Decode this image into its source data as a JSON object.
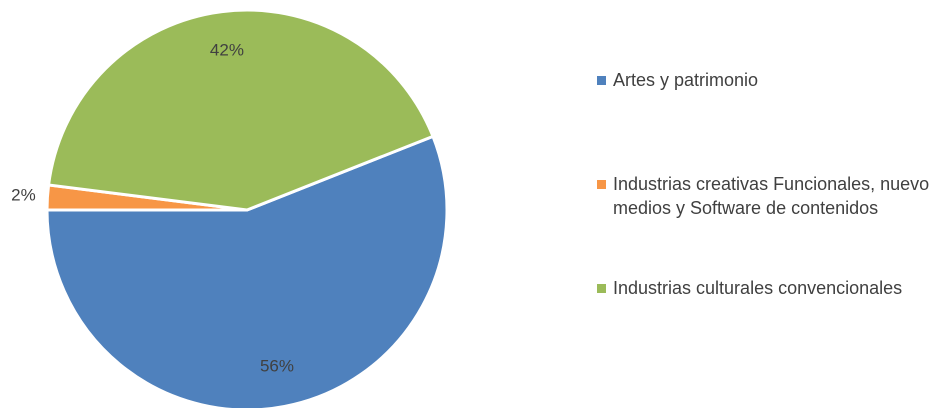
{
  "chart_data": {
    "type": "pie",
    "categories": [
      "Artes y patrimonio",
      "Industrias creativas Funcionales, nuevo medios y Software de contenidos",
      "Industrias culturales convencionales"
    ],
    "values": [
      56,
      2,
      42
    ],
    "value_labels": [
      "56%",
      "2%",
      "42%"
    ],
    "colors": [
      "#4f81bd",
      "#f79646",
      "#9bbb59"
    ],
    "legend": "right"
  }
}
